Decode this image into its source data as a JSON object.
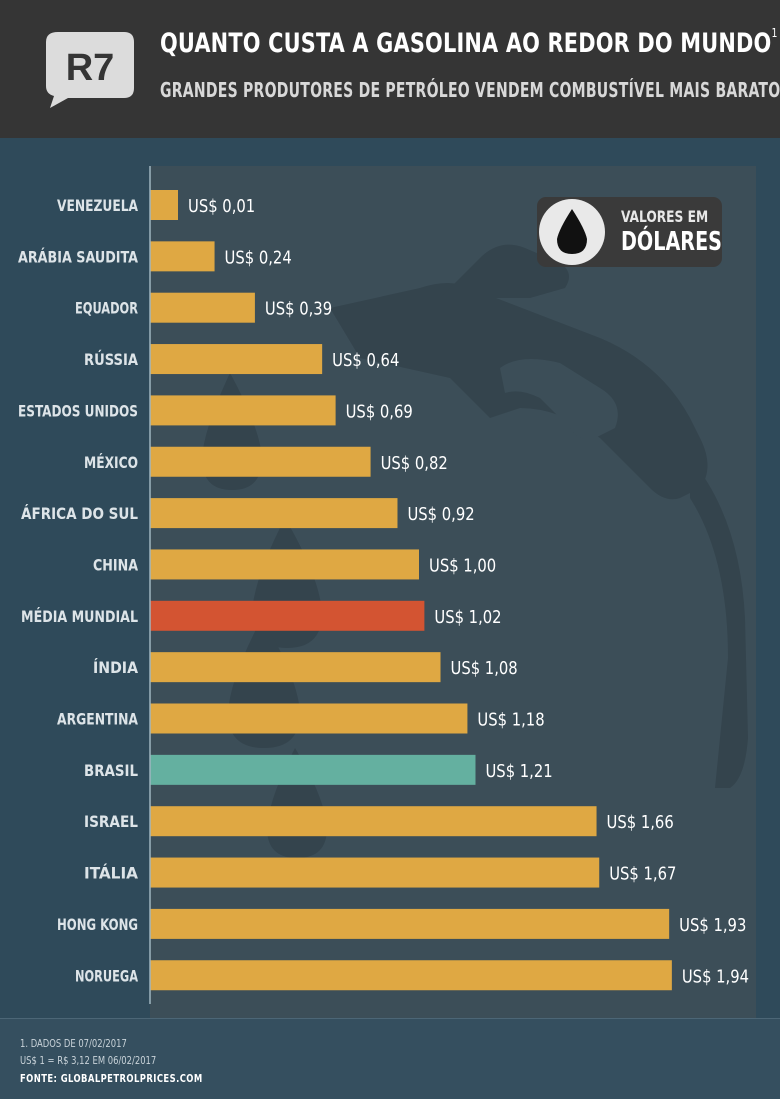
{
  "header": {
    "logo_text": "R7",
    "title": "QUANTO CUSTA A GASOLINA AO REDOR DO MUNDO",
    "title_note": "1",
    "subtitle": "GRANDES PRODUTORES DE PETRÓLEO VENDEM COMBUSTÍVEL MAIS BARATO"
  },
  "badge": {
    "icon": "oil-drop-icon",
    "line1": "VALORES EM",
    "line2": "DÓLARES"
  },
  "chart_data": {
    "type": "bar",
    "orientation": "horizontal",
    "categories": [
      "VENEZUELA",
      "ARÁBIA SAUDITA",
      "EQUADOR",
      "RÚSSIA",
      "ESTADOS UNIDOS",
      "MÉXICO",
      "ÁFRICA DO SUL",
      "CHINA",
      "MÉDIA MUNDIAL",
      "ÍNDIA",
      "ARGENTINA",
      "BRASIL",
      "ISRAEL",
      "ITÁLIA",
      "HONG KONG",
      "NORUEGA"
    ],
    "values": [
      0.01,
      0.24,
      0.39,
      0.64,
      0.69,
      0.82,
      0.92,
      1.0,
      1.02,
      1.08,
      1.18,
      1.21,
      1.66,
      1.67,
      1.93,
      1.94
    ],
    "value_labels": [
      "US$ 0,01",
      "US$ 0,24",
      "US$ 0,39",
      "US$ 0,64",
      "US$ 0,69",
      "US$ 0,82",
      "US$ 0,92",
      "US$ 1,00",
      "US$ 1,02",
      "US$ 1,08",
      "US$ 1,18",
      "US$ 1,21",
      "US$ 1,66",
      "US$ 1,67",
      "US$ 1,93",
      "US$ 1,94"
    ],
    "bar_colors": [
      "#dfa843",
      "#dfa843",
      "#dfa843",
      "#dfa843",
      "#dfa843",
      "#dfa843",
      "#dfa843",
      "#dfa843",
      "#d35432",
      "#dfa843",
      "#dfa843",
      "#64b0a0",
      "#dfa843",
      "#dfa843",
      "#dfa843",
      "#dfa843"
    ],
    "xlim": [
      0,
      2
    ],
    "grid": false,
    "legend": "none"
  },
  "footer": {
    "note1": "1. DADOS DE 07/02/2017",
    "note2": "US$ 1 = R$ 3,12 EM 06/02/2017",
    "source": "FONTE: GLOBALPETROLPRICES.COM"
  },
  "colors": {
    "background": "#2f4a5a",
    "panel": "#3c4e58",
    "header": "#353535",
    "default_bar": "#dfa843",
    "world_average_bar": "#d35432",
    "brazil_bar": "#64b0a0",
    "axis": "#9fb5c0"
  }
}
